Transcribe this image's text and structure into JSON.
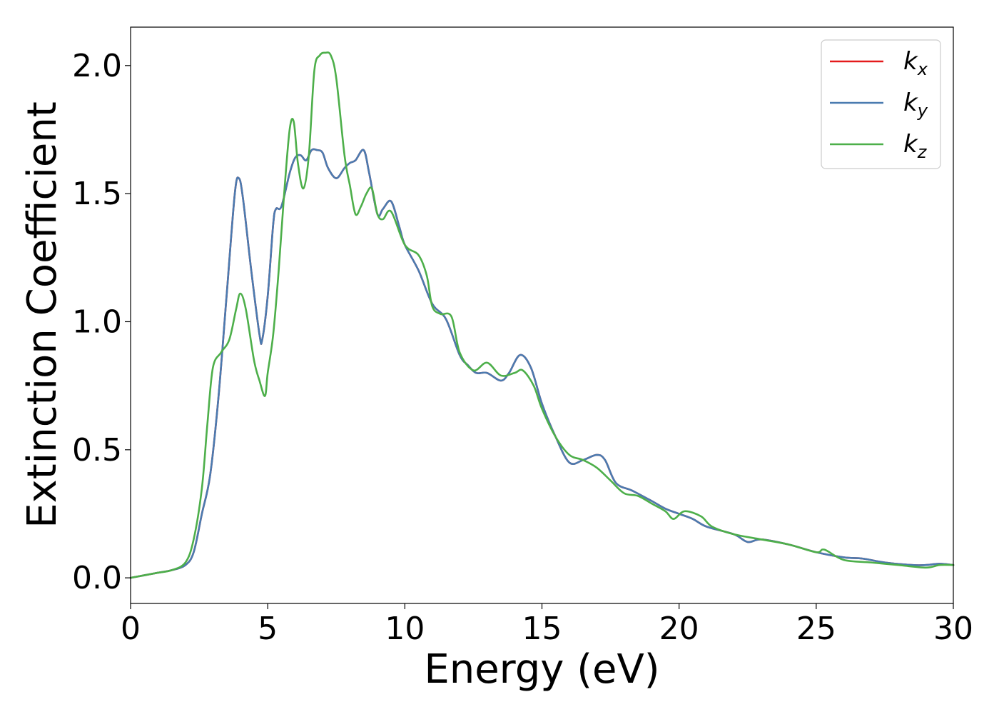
{
  "chart_data": {
    "type": "line",
    "title": "",
    "xlabel": "Energy (eV)",
    "ylabel": "Extinction Coefficient",
    "xlim": [
      0,
      30
    ],
    "ylim": [
      -0.1,
      2.15
    ],
    "xticks": [
      0,
      5,
      10,
      15,
      20,
      25,
      30
    ],
    "xtick_labels": [
      "0",
      "5",
      "10",
      "15",
      "20",
      "25",
      "30"
    ],
    "yticks": [
      0.0,
      0.5,
      1.0,
      1.5,
      2.0
    ],
    "ytick_labels": [
      "0.0",
      "0.5",
      "1.0",
      "1.5",
      "2.0"
    ],
    "grid": false,
    "legend_position": "top-right",
    "series": [
      {
        "name": "k",
        "subscript": "x",
        "color": "#e41a1c",
        "x": [
          0,
          0.5,
          1,
          1.5,
          2,
          2.3,
          2.6,
          2.9,
          3.2,
          3.5,
          3.8,
          3.95,
          4.1,
          4.4,
          4.7,
          4.8,
          5.0,
          5.2,
          5.3,
          5.5,
          5.8,
          6.0,
          6.2,
          6.4,
          6.6,
          6.8,
          7.0,
          7.2,
          7.5,
          7.8,
          8.0,
          8.2,
          8.5,
          8.7,
          9.0,
          9.2,
          9.5,
          9.8,
          10.0,
          10.5,
          11.0,
          11.5,
          12.0,
          12.3,
          12.6,
          13.0,
          13.5,
          13.8,
          14.2,
          14.6,
          15.0,
          15.5,
          16.0,
          16.5,
          17.0,
          17.3,
          17.7,
          18.3,
          19.0,
          19.5,
          20.0,
          20.5,
          21.0,
          22.0,
          22.5,
          23.0,
          24.0,
          25.0,
          26.0,
          26.7,
          27.5,
          28.5,
          29.0,
          29.5,
          30.0
        ],
        "values": [
          0.0,
          0.01,
          0.02,
          0.03,
          0.05,
          0.1,
          0.25,
          0.4,
          0.7,
          1.1,
          1.5,
          1.56,
          1.48,
          1.2,
          0.95,
          0.93,
          1.1,
          1.38,
          1.44,
          1.45,
          1.58,
          1.64,
          1.65,
          1.63,
          1.67,
          1.67,
          1.66,
          1.6,
          1.56,
          1.6,
          1.62,
          1.63,
          1.67,
          1.58,
          1.42,
          1.44,
          1.47,
          1.37,
          1.3,
          1.2,
          1.07,
          1.01,
          0.87,
          0.83,
          0.8,
          0.8,
          0.77,
          0.8,
          0.87,
          0.82,
          0.68,
          0.55,
          0.45,
          0.46,
          0.48,
          0.46,
          0.37,
          0.34,
          0.3,
          0.27,
          0.25,
          0.23,
          0.2,
          0.17,
          0.14,
          0.15,
          0.13,
          0.1,
          0.08,
          0.075,
          0.06,
          0.05,
          0.05,
          0.055,
          0.05
        ]
      },
      {
        "name": "k",
        "subscript": "y",
        "color": "#4a7bb0",
        "x": [
          0,
          0.5,
          1,
          1.5,
          2,
          2.3,
          2.6,
          2.9,
          3.2,
          3.5,
          3.8,
          3.95,
          4.1,
          4.4,
          4.7,
          4.8,
          5.0,
          5.2,
          5.3,
          5.5,
          5.8,
          6.0,
          6.2,
          6.4,
          6.6,
          6.8,
          7.0,
          7.2,
          7.5,
          7.8,
          8.0,
          8.2,
          8.5,
          8.7,
          9.0,
          9.2,
          9.5,
          9.8,
          10.0,
          10.5,
          11.0,
          11.5,
          12.0,
          12.3,
          12.6,
          13.0,
          13.5,
          13.8,
          14.2,
          14.6,
          15.0,
          15.5,
          16.0,
          16.5,
          17.0,
          17.3,
          17.7,
          18.3,
          19.0,
          19.5,
          20.0,
          20.5,
          21.0,
          22.0,
          22.5,
          23.0,
          24.0,
          25.0,
          26.0,
          26.7,
          27.5,
          28.5,
          29.0,
          29.5,
          30.0
        ],
        "values": [
          0.0,
          0.01,
          0.02,
          0.03,
          0.05,
          0.1,
          0.25,
          0.4,
          0.7,
          1.1,
          1.5,
          1.56,
          1.48,
          1.2,
          0.95,
          0.93,
          1.1,
          1.38,
          1.44,
          1.45,
          1.58,
          1.64,
          1.65,
          1.63,
          1.67,
          1.67,
          1.66,
          1.6,
          1.56,
          1.6,
          1.62,
          1.63,
          1.67,
          1.58,
          1.42,
          1.44,
          1.47,
          1.37,
          1.3,
          1.2,
          1.07,
          1.01,
          0.87,
          0.83,
          0.8,
          0.8,
          0.77,
          0.8,
          0.87,
          0.82,
          0.68,
          0.55,
          0.45,
          0.46,
          0.48,
          0.46,
          0.37,
          0.34,
          0.3,
          0.27,
          0.25,
          0.23,
          0.2,
          0.17,
          0.14,
          0.15,
          0.13,
          0.1,
          0.08,
          0.075,
          0.06,
          0.05,
          0.05,
          0.055,
          0.05
        ]
      },
      {
        "name": "k",
        "subscript": "z",
        "color": "#4daf4a",
        "x": [
          0,
          0.5,
          1,
          1.5,
          2,
          2.3,
          2.6,
          2.8,
          3.0,
          3.3,
          3.6,
          3.85,
          4.0,
          4.2,
          4.5,
          4.7,
          4.9,
          5.0,
          5.2,
          5.4,
          5.6,
          5.8,
          5.95,
          6.1,
          6.3,
          6.5,
          6.7,
          6.9,
          7.1,
          7.3,
          7.5,
          7.8,
          8.0,
          8.2,
          8.4,
          8.6,
          8.8,
          9.0,
          9.2,
          9.5,
          10.0,
          10.5,
          10.8,
          11.0,
          11.3,
          11.7,
          12.0,
          12.5,
          13.0,
          13.5,
          14.0,
          14.3,
          14.7,
          15.0,
          15.5,
          16.0,
          16.5,
          17.0,
          17.5,
          18.0,
          18.5,
          19.0,
          19.5,
          19.8,
          20.2,
          20.8,
          21.2,
          22.0,
          23.0,
          24.0,
          25.0,
          25.3,
          26.0,
          27.0,
          28.0,
          29.0,
          29.5,
          30.0
        ],
        "values": [
          0.0,
          0.01,
          0.02,
          0.03,
          0.06,
          0.15,
          0.35,
          0.6,
          0.82,
          0.88,
          0.93,
          1.05,
          1.11,
          1.05,
          0.85,
          0.77,
          0.71,
          0.8,
          0.95,
          1.2,
          1.5,
          1.75,
          1.78,
          1.62,
          1.52,
          1.65,
          1.98,
          2.04,
          2.05,
          2.04,
          1.95,
          1.65,
          1.53,
          1.42,
          1.45,
          1.5,
          1.52,
          1.42,
          1.4,
          1.43,
          1.3,
          1.26,
          1.18,
          1.06,
          1.03,
          1.02,
          0.88,
          0.81,
          0.84,
          0.79,
          0.8,
          0.81,
          0.75,
          0.66,
          0.55,
          0.48,
          0.46,
          0.43,
          0.38,
          0.33,
          0.32,
          0.29,
          0.26,
          0.23,
          0.26,
          0.24,
          0.2,
          0.17,
          0.15,
          0.13,
          0.1,
          0.11,
          0.07,
          0.06,
          0.05,
          0.04,
          0.05,
          0.05
        ]
      }
    ]
  }
}
